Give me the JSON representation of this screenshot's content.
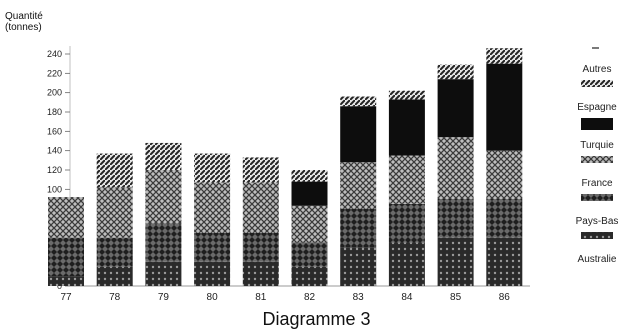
{
  "chart_data": {
    "type": "bar",
    "stacked": true,
    "title": "",
    "caption": "Diagramme 3",
    "ylabel_line1": "Quantité",
    "ylabel_line2": "(tonnes)",
    "xlabel": "",
    "ylim": [
      0,
      240
    ],
    "yticks": [
      "0",
      "20",
      "40",
      "60",
      "80",
      "100",
      "120",
      "140",
      "160",
      "180",
      "200",
      "220",
      "240"
    ],
    "categories": [
      "77",
      "78",
      "79",
      "80",
      "81",
      "82",
      "83",
      "84",
      "85",
      "86"
    ],
    "legend_position": "right",
    "series": [
      {
        "name": "Australie",
        "color": "#1a1a1a",
        "values": [
          10,
          20,
          25,
          25,
          25,
          20,
          40,
          45,
          50,
          50
        ]
      },
      {
        "name": "Pays-Bas",
        "color": "#333333",
        "values": [
          40,
          30,
          40,
          30,
          30,
          25,
          40,
          40,
          40,
          40
        ]
      },
      {
        "name": "France",
        "color": "#8c8c8c",
        "values": [
          42,
          52,
          55,
          52,
          52,
          38,
          48,
          50,
          64,
          50
        ]
      },
      {
        "name": "Turquie",
        "color": "#0d0d0d",
        "values": [
          0,
          0,
          0,
          0,
          0,
          25,
          58,
          58,
          60,
          90
        ]
      },
      {
        "name": "Espagne",
        "color": "#444444",
        "values": [
          0,
          35,
          28,
          30,
          26,
          12,
          10,
          9,
          15,
          16
        ]
      },
      {
        "name": "Autres",
        "color": "#111111",
        "values": [
          0,
          0,
          0,
          0,
          0,
          0,
          0,
          0,
          0,
          0
        ]
      }
    ]
  }
}
